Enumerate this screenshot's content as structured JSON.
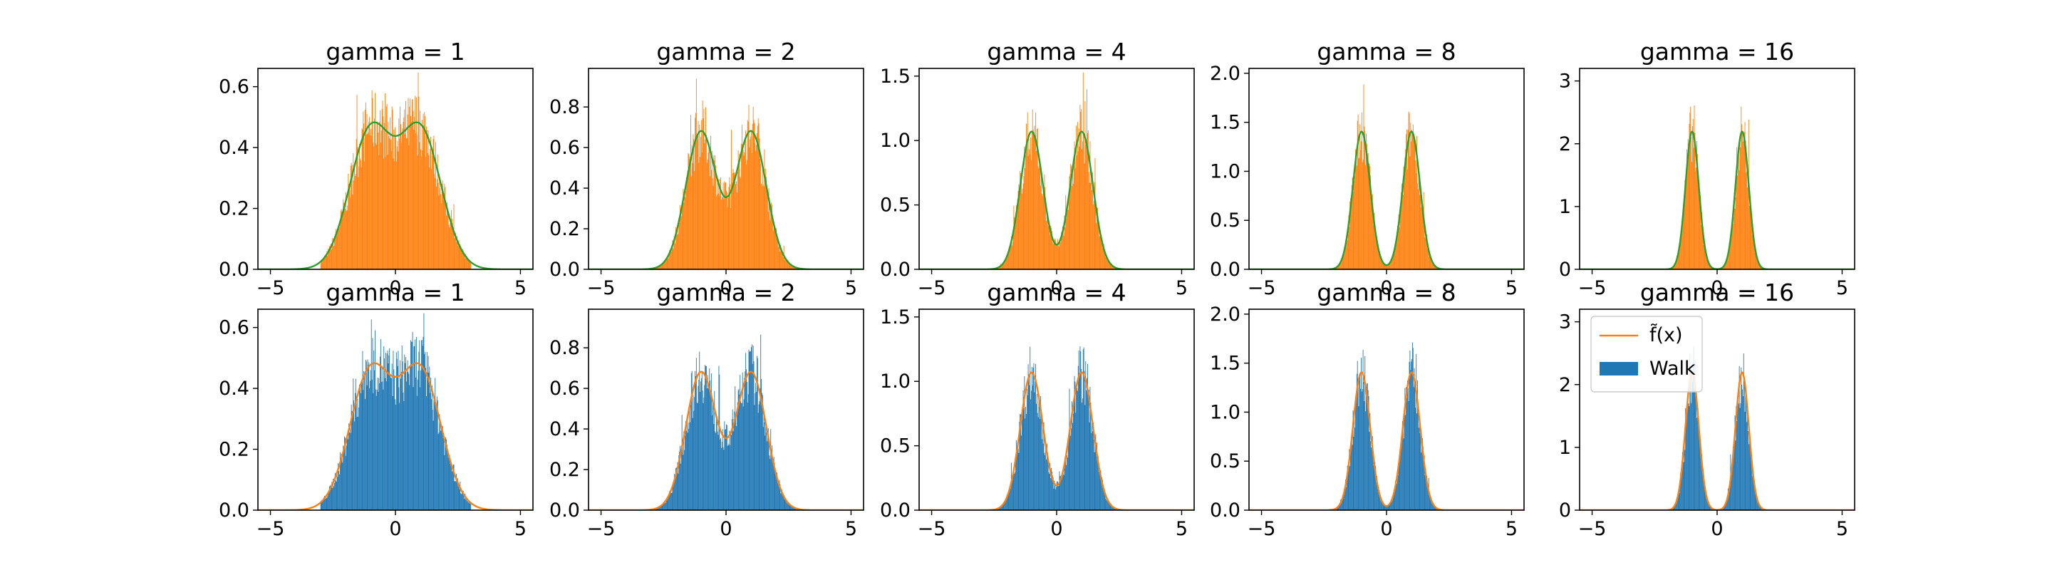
{
  "figure": {
    "grid": false
  },
  "colors": {
    "walk": "#1f77b4",
    "walk_top_row": "#ff7f0e",
    "f_tilde": "#ff7f0e",
    "top_row_line": "#2ca02c",
    "axes": "#000000",
    "background": "#ffffff"
  },
  "legend": {
    "location": "upper left of last bottom panel",
    "entries": [
      {
        "label": "f̃(x)",
        "kind": "line",
        "color": "#ff7f0e"
      },
      {
        "label": "Walk",
        "kind": "patch",
        "color": "#1f77b4"
      }
    ]
  },
  "chart_data": [
    {
      "type": "histogram",
      "row": 1,
      "col": 1,
      "title": "gamma = 1",
      "gamma": 1,
      "xlim": [
        -5.5,
        5.5
      ],
      "ylim": [
        0,
        0.66
      ],
      "xticks": [
        -5,
        0,
        5
      ],
      "yticks": [
        0.0,
        0.2,
        0.4,
        0.6
      ],
      "yticklabels": [
        "0.0",
        "0.2",
        "0.4",
        "0.6"
      ],
      "series": [
        {
          "name": "",
          "kind": "histogram",
          "color": "#ff7f0e"
        },
        {
          "name": "",
          "kind": "line",
          "color": "#2ca02c"
        }
      ]
    },
    {
      "type": "histogram",
      "row": 1,
      "col": 2,
      "title": "gamma = 2",
      "gamma": 2,
      "xlim": [
        -5.5,
        5.5
      ],
      "ylim": [
        0,
        0.99
      ],
      "xticks": [
        -5,
        0,
        5
      ],
      "yticks": [
        0.0,
        0.2,
        0.4,
        0.6,
        0.8
      ],
      "yticklabels": [
        "0.0",
        "0.2",
        "0.4",
        "0.6",
        "0.8"
      ],
      "series": [
        {
          "name": "",
          "kind": "histogram",
          "color": "#ff7f0e"
        },
        {
          "name": "",
          "kind": "line",
          "color": "#2ca02c"
        }
      ]
    },
    {
      "type": "histogram",
      "row": 1,
      "col": 3,
      "title": "gamma = 4",
      "gamma": 4,
      "xlim": [
        -5.5,
        5.5
      ],
      "ylim": [
        0,
        1.56
      ],
      "xticks": [
        -5,
        0,
        5
      ],
      "yticks": [
        0.0,
        0.5,
        1.0,
        1.5
      ],
      "yticklabels": [
        "0.0",
        "0.5",
        "1.0",
        "1.5"
      ],
      "series": [
        {
          "name": "",
          "kind": "histogram",
          "color": "#ff7f0e"
        },
        {
          "name": "",
          "kind": "line",
          "color": "#2ca02c"
        }
      ]
    },
    {
      "type": "histogram",
      "row": 1,
      "col": 4,
      "title": "gamma = 8",
      "gamma": 8,
      "xlim": [
        -5.5,
        5.5
      ],
      "ylim": [
        0,
        2.05
      ],
      "xticks": [
        -5,
        0,
        5
      ],
      "yticks": [
        0.0,
        0.5,
        1.0,
        1.5,
        2.0
      ],
      "yticklabels": [
        "0.0",
        "0.5",
        "1.0",
        "1.5",
        "2.0"
      ],
      "series": [
        {
          "name": "",
          "kind": "histogram",
          "color": "#ff7f0e"
        },
        {
          "name": "",
          "kind": "line",
          "color": "#2ca02c"
        }
      ]
    },
    {
      "type": "histogram",
      "row": 1,
      "col": 5,
      "title": "gamma = 16",
      "gamma": 16,
      "xlim": [
        -5.5,
        5.5
      ],
      "ylim": [
        0,
        3.2
      ],
      "xticks": [
        -5,
        0,
        5
      ],
      "yticks": [
        0,
        1,
        2,
        3
      ],
      "yticklabels": [
        "0",
        "1",
        "2",
        "3"
      ],
      "series": [
        {
          "name": "",
          "kind": "histogram",
          "color": "#ff7f0e"
        },
        {
          "name": "",
          "kind": "line",
          "color": "#2ca02c"
        }
      ]
    },
    {
      "type": "histogram",
      "row": 2,
      "col": 1,
      "title": "gamma = 1",
      "gamma": 1,
      "xlim": [
        -5.5,
        5.5
      ],
      "ylim": [
        0,
        0.66
      ],
      "xticks": [
        -5,
        0,
        5
      ],
      "yticks": [
        0.0,
        0.2,
        0.4,
        0.6
      ],
      "yticklabels": [
        "0.0",
        "0.2",
        "0.4",
        "0.6"
      ],
      "series": [
        {
          "name": "Walk",
          "kind": "histogram",
          "color": "#1f77b4"
        },
        {
          "name": "f̃(x)",
          "kind": "line",
          "color": "#ff7f0e"
        }
      ]
    },
    {
      "type": "histogram",
      "row": 2,
      "col": 2,
      "title": "gamma = 2",
      "gamma": 2,
      "xlim": [
        -5.5,
        5.5
      ],
      "ylim": [
        0,
        0.99
      ],
      "xticks": [
        -5,
        0,
        5
      ],
      "yticks": [
        0.0,
        0.2,
        0.4,
        0.6,
        0.8
      ],
      "yticklabels": [
        "0.0",
        "0.2",
        "0.4",
        "0.6",
        "0.8"
      ],
      "series": [
        {
          "name": "Walk",
          "kind": "histogram",
          "color": "#1f77b4"
        },
        {
          "name": "f̃(x)",
          "kind": "line",
          "color": "#ff7f0e"
        }
      ]
    },
    {
      "type": "histogram",
      "row": 2,
      "col": 3,
      "title": "gamma = 4",
      "gamma": 4,
      "xlim": [
        -5.5,
        5.5
      ],
      "ylim": [
        0,
        1.56
      ],
      "xticks": [
        -5,
        0,
        5
      ],
      "yticks": [
        0.0,
        0.5,
        1.0,
        1.5
      ],
      "yticklabels": [
        "0.0",
        "0.5",
        "1.0",
        "1.5"
      ],
      "series": [
        {
          "name": "Walk",
          "kind": "histogram",
          "color": "#1f77b4"
        },
        {
          "name": "f̃(x)",
          "kind": "line",
          "color": "#ff7f0e"
        }
      ]
    },
    {
      "type": "histogram",
      "row": 2,
      "col": 4,
      "title": "gamma = 8",
      "gamma": 8,
      "xlim": [
        -5.5,
        5.5
      ],
      "ylim": [
        0,
        2.05
      ],
      "xticks": [
        -5,
        0,
        5
      ],
      "yticks": [
        0.0,
        0.5,
        1.0,
        1.5,
        2.0
      ],
      "yticklabels": [
        "0.0",
        "0.5",
        "1.0",
        "1.5",
        "2.0"
      ],
      "series": [
        {
          "name": "Walk",
          "kind": "histogram",
          "color": "#1f77b4"
        },
        {
          "name": "f̃(x)",
          "kind": "line",
          "color": "#ff7f0e"
        }
      ]
    },
    {
      "type": "histogram",
      "row": 2,
      "col": 5,
      "title": "gamma = 16",
      "gamma": 16,
      "xlim": [
        -5.5,
        5.5
      ],
      "ylim": [
        0,
        3.2
      ],
      "xticks": [
        -5,
        0,
        5
      ],
      "yticks": [
        0,
        1,
        2,
        3
      ],
      "yticklabels": [
        "0",
        "1",
        "2",
        "3"
      ],
      "series": [
        {
          "name": "Walk",
          "kind": "histogram",
          "color": "#1f77b4"
        },
        {
          "name": "f̃(x)",
          "kind": "line",
          "color": "#ff7f0e"
        }
      ]
    }
  ]
}
